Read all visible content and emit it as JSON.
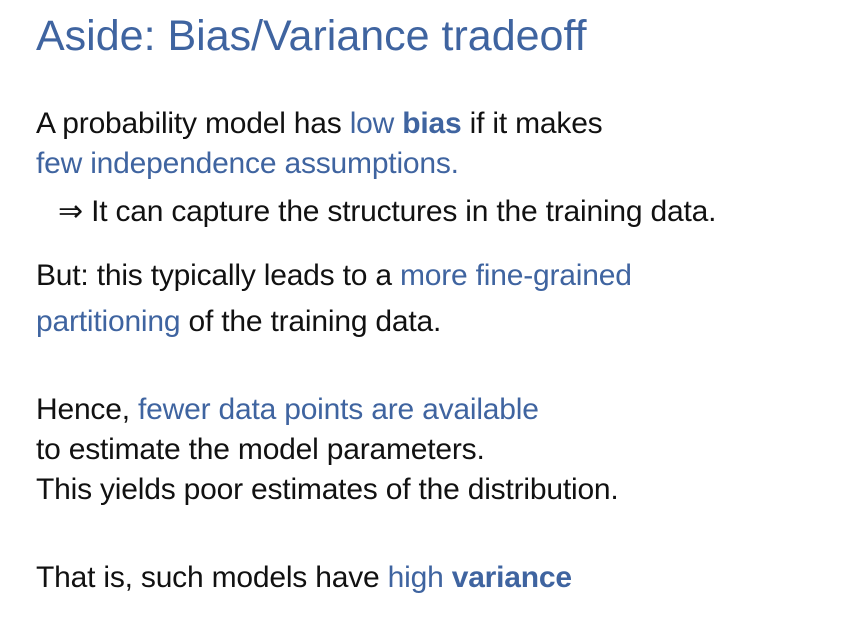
{
  "slide": {
    "title": "Aside: Bias/Variance tradeoff",
    "para1": {
      "line1_a": "A probability model has ",
      "line1_b": "low ",
      "line1_c": "bias",
      "line1_d": " if it makes",
      "line2": "few independence assumptions."
    },
    "para1_implication": {
      "arrow": "⇒",
      "text": " It can capture the structures in the training data."
    },
    "para2": {
      "line1_a": "But: this typically leads to a ",
      "line1_b": "more fine-grained",
      "line2_a": "partitioning",
      "line2_b": " of the training data."
    },
    "para3": {
      "line1_a": "Hence, ",
      "line1_b": "fewer data points are available",
      "line2": "to estimate the model parameters.",
      "line3": "This yields poor estimates of the distribution."
    },
    "para4": {
      "line1_a": "That is, such models have ",
      "line1_b": "high ",
      "line1_c": "variance"
    },
    "colors": {
      "accent": "#3f64a0",
      "text": "#111111",
      "background": "#ffffff"
    }
  }
}
